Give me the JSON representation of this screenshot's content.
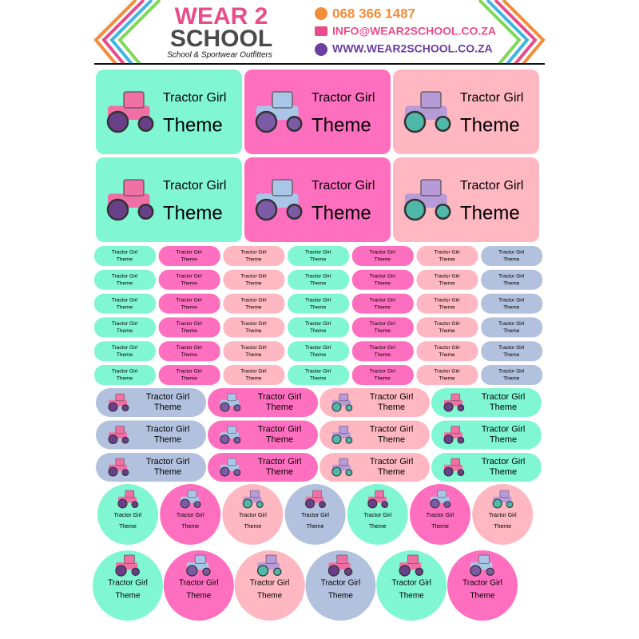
{
  "header": {
    "logo_line1": "WEAR 2",
    "logo_line2": "SCHOOL",
    "tagline": "School & Sportwear Outfitters",
    "phone": "068 366 1487",
    "email": "INFO@WEAR2SCHOOL.CO.ZA",
    "website": "WWW.WEAR2SCHOOL.CO.ZA"
  },
  "labels": {
    "large": [
      [
        "Tractor Girl",
        "Theme"
      ],
      [
        "Tractor Girl",
        "Theme"
      ],
      [
        "Tractor Girl",
        "Theme"
      ],
      [
        "Tractor Girl",
        "Theme"
      ],
      [
        "Tractor Girl",
        "Theme"
      ],
      [
        "Tractor Girl",
        "Theme"
      ]
    ],
    "small": [
      [
        "Tractor Girl",
        "Theme"
      ],
      [
        "Tractor Girl",
        "Theme"
      ],
      [
        "Tractor Girl",
        "Theme"
      ],
      [
        "Tractor Girl",
        "Theme"
      ],
      [
        "Tractor Girl",
        "Theme"
      ],
      [
        "Tractor Girl",
        "Theme"
      ],
      [
        "Tractor Girl",
        "Theme"
      ],
      [
        "Tractor Girl",
        "Theme"
      ],
      [
        "Tractor Girl",
        "Theme"
      ],
      [
        "Tractor Girl",
        "Theme"
      ],
      [
        "Tractor Girl",
        "Theme"
      ],
      [
        "Tractor Girl",
        "Theme"
      ],
      [
        "Tractor Girl",
        "Theme"
      ],
      [
        "Tractor Girl",
        "Theme"
      ],
      [
        "Tractor Girl",
        "Theme"
      ],
      [
        "Tractor Girl",
        "Theme"
      ],
      [
        "Tractor Girl",
        "Theme"
      ],
      [
        "Tractor Girl",
        "Theme"
      ],
      [
        "Tractor Girl",
        "Theme"
      ],
      [
        "Tractor Girl",
        "Theme"
      ],
      [
        "Tractor Girl",
        "Theme"
      ],
      [
        "Tractor Girl",
        "Theme"
      ],
      [
        "Tractor Girl",
        "Theme"
      ],
      [
        "Tractor Girl",
        "Theme"
      ],
      [
        "Tractor Girl",
        "Theme"
      ],
      [
        "Tractor Girl",
        "Theme"
      ],
      [
        "Tractor Girl",
        "Theme"
      ],
      [
        "Tractor Girl",
        "Theme"
      ],
      [
        "Tractor Girl",
        "Theme"
      ],
      [
        "Tractor Girl",
        "Theme"
      ],
      [
        "Tractor Girl",
        "Theme"
      ],
      [
        "Tractor Girl",
        "Theme"
      ],
      [
        "Tractor Girl",
        "Theme"
      ],
      [
        "Tractor Girl",
        "Theme"
      ],
      [
        "Tractor Girl",
        "Theme"
      ],
      [
        "Tractor Girl",
        "Theme"
      ],
      [
        "Tractor Girl",
        "Theme"
      ],
      [
        "Tractor Girl",
        "Theme"
      ],
      [
        "Tractor Girl",
        "Theme"
      ],
      [
        "Tractor Girl",
        "Theme"
      ],
      [
        "Tractor Girl",
        "Theme"
      ],
      [
        "Tractor Girl",
        "Theme"
      ]
    ],
    "medium": [
      [
        "Tractor Girl",
        "Theme"
      ],
      [
        "Tractor Girl",
        "Theme"
      ],
      [
        "Tractor Girl",
        "Theme"
      ],
      [
        "Tractor Girl",
        "Theme"
      ],
      [
        "Tractor Girl",
        "Theme"
      ],
      [
        "Tractor Girl",
        "Theme"
      ],
      [
        "Tractor Girl",
        "Theme"
      ],
      [
        "Tractor Girl",
        "Theme"
      ],
      [
        "Tractor Girl",
        "Theme"
      ],
      [
        "Tractor Girl",
        "Theme"
      ],
      [
        "Tractor Girl",
        "Theme"
      ],
      [
        "Tractor Girl",
        "Theme"
      ]
    ],
    "circle_small": [
      [
        "Tractor Girl",
        "Theme"
      ],
      [
        "Tractor Girl",
        "Theme"
      ],
      [
        "Tractor Girl",
        "Theme"
      ],
      [
        "Tractor Girl",
        "Theme"
      ],
      [
        "Tractor Girl",
        "Theme"
      ],
      [
        "Tractor Girl",
        "Theme"
      ],
      [
        "Tractor Girl",
        "Theme"
      ]
    ],
    "circle_large": [
      [
        "Tractor Girl",
        "Theme"
      ],
      [
        "Tractor Girl",
        "Theme"
      ],
      [
        "Tractor Girl",
        "Theme"
      ],
      [
        "Tractor Girl",
        "Theme"
      ],
      [
        "Tractor Girl",
        "Theme"
      ],
      [
        "Tractor Girl",
        "Theme"
      ]
    ]
  }
}
